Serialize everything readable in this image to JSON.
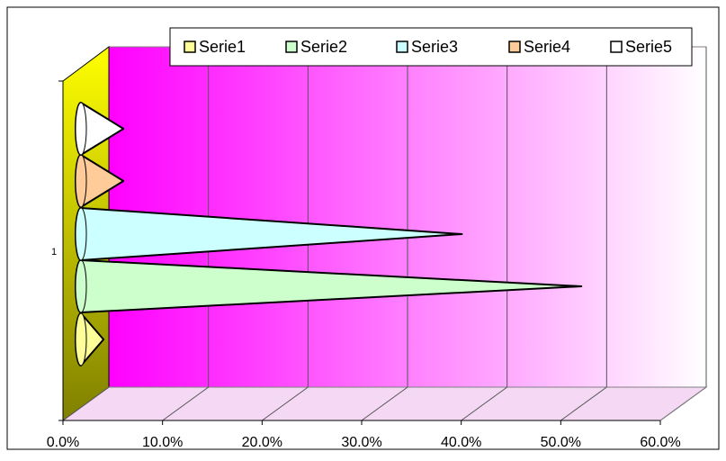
{
  "chart_data": {
    "type": "bar",
    "orientation": "horizontal",
    "style": "3d-cone",
    "categories": [
      "1"
    ],
    "series": [
      {
        "name": "Serie1",
        "values": [
          0.02
        ],
        "color": "#ffff99"
      },
      {
        "name": "Serie2",
        "values": [
          0.5
        ],
        "color": "#ccffcc"
      },
      {
        "name": "Serie3",
        "values": [
          0.38
        ],
        "color": "#ccffff"
      },
      {
        "name": "Serie4",
        "values": [
          0.04
        ],
        "color": "#ffcc99"
      },
      {
        "name": "Serie5",
        "values": [
          0.04
        ],
        "color": "#ffffff"
      }
    ],
    "xlim": [
      0,
      0.6
    ],
    "x_ticks": [
      "0.0%",
      "10.0%",
      "20.0%",
      "30.0%",
      "40.0%",
      "50.0%",
      "60.0%"
    ],
    "y_ticks": [
      "1"
    ],
    "legend_position": "top-right",
    "grid": true,
    "colors": {
      "back_wall_start": "#ff00ff",
      "back_wall_end": "#ffffff",
      "side_wall_top": "#ffff00",
      "side_wall_bottom": "#808000"
    }
  }
}
